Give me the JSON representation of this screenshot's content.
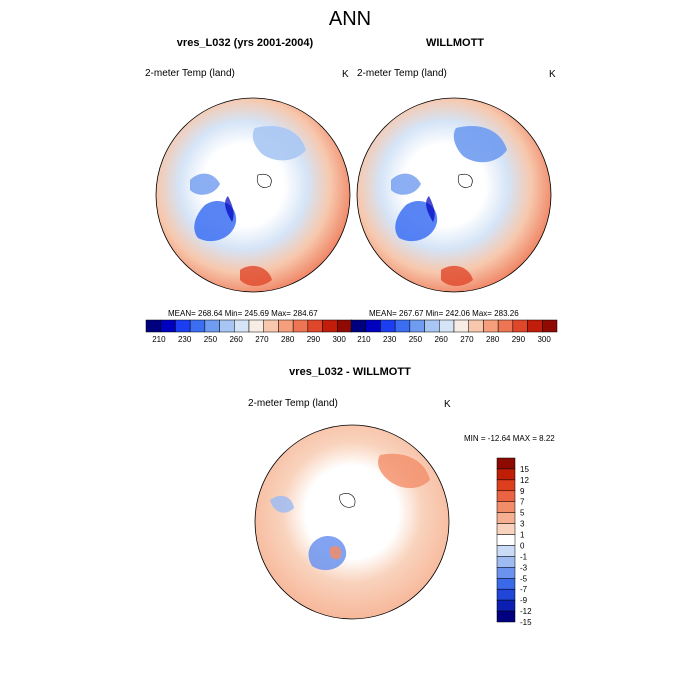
{
  "figure": {
    "title": "ANN"
  },
  "colors": {
    "abs_scale": [
      "#00007f",
      "#0000bf",
      "#1c3ef2",
      "#3c6ef2",
      "#6f9bf0",
      "#a8c6f3",
      "#d5e4f7",
      "#f7ede4",
      "#f7c8ad",
      "#f59f7c",
      "#ee7554",
      "#e0472a",
      "#c21c0b",
      "#8f0a02"
    ],
    "diff_scale": [
      "#000080",
      "#0c1fb3",
      "#1f45d9",
      "#3a6ae8",
      "#6b93ee",
      "#9fbcf2",
      "#c9dbf6",
      "#ffffff",
      "#f9d3bd",
      "#f6b091",
      "#f28d69",
      "#ea6443",
      "#dd3e1d",
      "#c01d07",
      "#8c0a00"
    ],
    "land_ocean": "#ffffff",
    "outline": "#000000"
  },
  "chart_data": [
    {
      "type": "heatmap",
      "projection": "north-polar-stereographic",
      "title": "vres_L032 (yrs 2001-2004)",
      "variable_label": "2-meter Temp (land)",
      "units": "K",
      "stats": {
        "text": "MEAN= 268.64  Min= 245.69  Max= 284.67",
        "mean": 268.64,
        "min": 245.69,
        "max": 284.67
      },
      "colorbar": {
        "orientation": "horizontal",
        "tick_labels": [
          "210",
          "230",
          "250",
          "260",
          "270",
          "280",
          "290",
          "300"
        ]
      }
    },
    {
      "type": "heatmap",
      "projection": "north-polar-stereographic",
      "title": "WILLMOTT",
      "variable_label": "2-meter Temp (land)",
      "units": "K",
      "stats": {
        "text": "MEAN= 267.67  Min= 242.06  Max= 283.26",
        "mean": 267.67,
        "min": 242.06,
        "max": 283.26
      },
      "colorbar": {
        "orientation": "horizontal",
        "tick_labels": [
          "210",
          "230",
          "250",
          "260",
          "270",
          "280",
          "290",
          "300"
        ]
      }
    },
    {
      "type": "heatmap",
      "projection": "north-polar-stereographic",
      "title": "vres_L032 - WILLMOTT",
      "variable_label": "2-meter Temp (land)",
      "units": "K",
      "stats": {
        "text": "MIN = -12.64 MAX =   8.22",
        "min": -12.64,
        "max": 8.22
      },
      "colorbar": {
        "orientation": "vertical",
        "tick_labels": [
          "15",
          "12",
          "9",
          "7",
          "5",
          "3",
          "1",
          "0",
          "-1",
          "-3",
          "-5",
          "-7",
          "-9",
          "-12",
          "-15"
        ]
      }
    }
  ]
}
